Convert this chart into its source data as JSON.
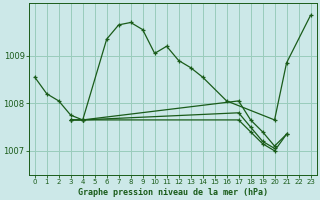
{
  "title": "Graphe pression niveau de la mer (hPa)",
  "background_color": "#cce8e8",
  "grid_color": "#99ccbb",
  "line_color": "#1a5c1a",
  "xlim": [
    -0.5,
    23.5
  ],
  "ylim": [
    1006.5,
    1010.1
  ],
  "yticks": [
    1007,
    1008,
    1009
  ],
  "xtick_labels": [
    "0",
    "1",
    "2",
    "3",
    "4",
    "5",
    "6",
    "7",
    "8",
    "9",
    "10",
    "11",
    "12",
    "13",
    "14",
    "15",
    "16",
    "17",
    "18",
    "19",
    "20",
    "21",
    "22",
    "23"
  ],
  "series": [
    {
      "x": [
        0,
        1,
        2,
        3,
        4,
        6,
        7,
        8,
        9,
        10,
        11,
        12,
        13,
        14,
        16,
        20,
        21,
        23
      ],
      "y": [
        1008.55,
        1008.2,
        1008.05,
        1007.75,
        1007.65,
        1009.35,
        1009.65,
        1009.7,
        1009.55,
        1009.05,
        1009.2,
        1008.9,
        1008.75,
        1008.55,
        1008.05,
        1007.65,
        1008.85,
        1009.85
      ]
    },
    {
      "x": [
        3,
        4,
        17,
        18,
        19,
        20,
        21
      ],
      "y": [
        1007.65,
        1007.65,
        1008.05,
        1007.65,
        1007.4,
        1007.1,
        1007.35
      ]
    },
    {
      "x": [
        3,
        4,
        17,
        18,
        19,
        20
      ],
      "y": [
        1007.65,
        1007.65,
        1007.8,
        1007.5,
        1007.2,
        1007.05
      ]
    },
    {
      "x": [
        3,
        4,
        17,
        18,
        19,
        20,
        21
      ],
      "y": [
        1007.65,
        1007.65,
        1007.65,
        1007.4,
        1007.15,
        1007.0,
        1007.35
      ]
    }
  ]
}
